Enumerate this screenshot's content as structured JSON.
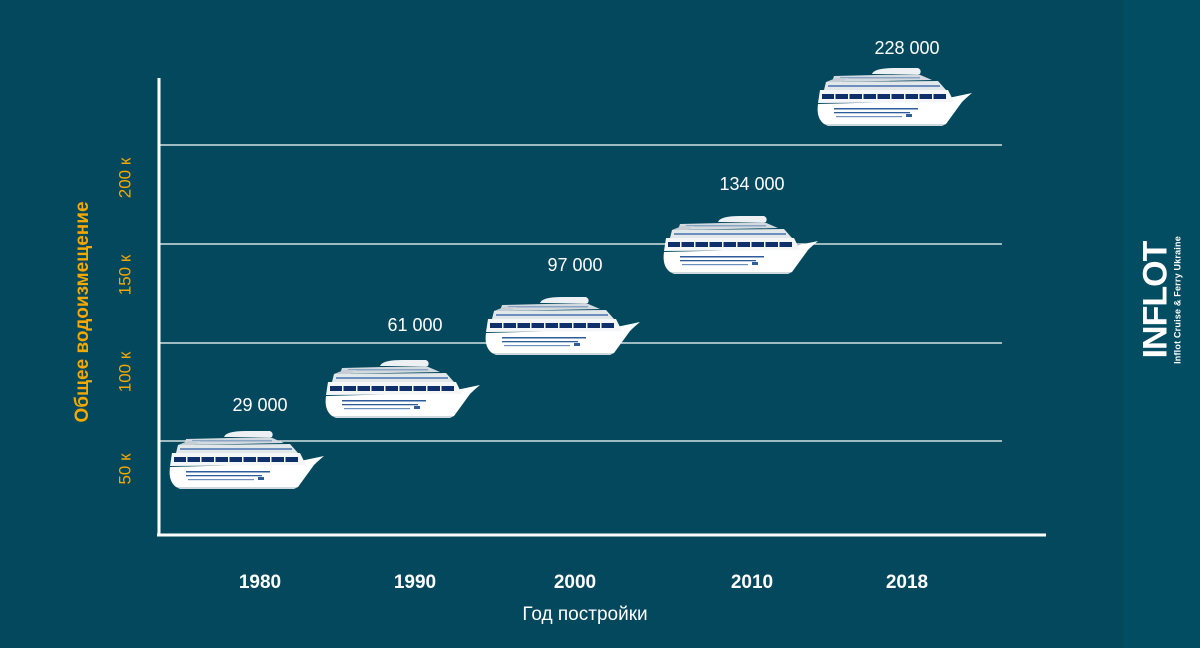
{
  "chart_data": {
    "type": "scatter",
    "ylabel": "Общее водоизмещение",
    "xlabel": "Год постройки",
    "categories": [
      "1980",
      "1990",
      "2000",
      "2010",
      "2018"
    ],
    "values": [
      29000,
      61000,
      97000,
      134000,
      228000
    ],
    "value_labels": [
      "29 000",
      "61 000",
      "97 000",
      "134 000",
      "228 000"
    ],
    "y_ticks": [
      {
        "value": 50000,
        "label": "50 к"
      },
      {
        "value": 100000,
        "label": "100 к"
      },
      {
        "value": 150000,
        "label": "150 к"
      },
      {
        "value": 200000,
        "label": "200 к"
      }
    ],
    "marker": "cruise-ship-icon",
    "grid": true,
    "colors": {
      "background": "#03485d",
      "ylabel": "#f5a800",
      "text": "#ffffff",
      "ship_hull": "#ffffff",
      "ship_window": "#0f2f6b"
    }
  },
  "brand": {
    "name": "INFLOT",
    "tagline": "Inflot Cruise & Ferry Ukraine"
  }
}
